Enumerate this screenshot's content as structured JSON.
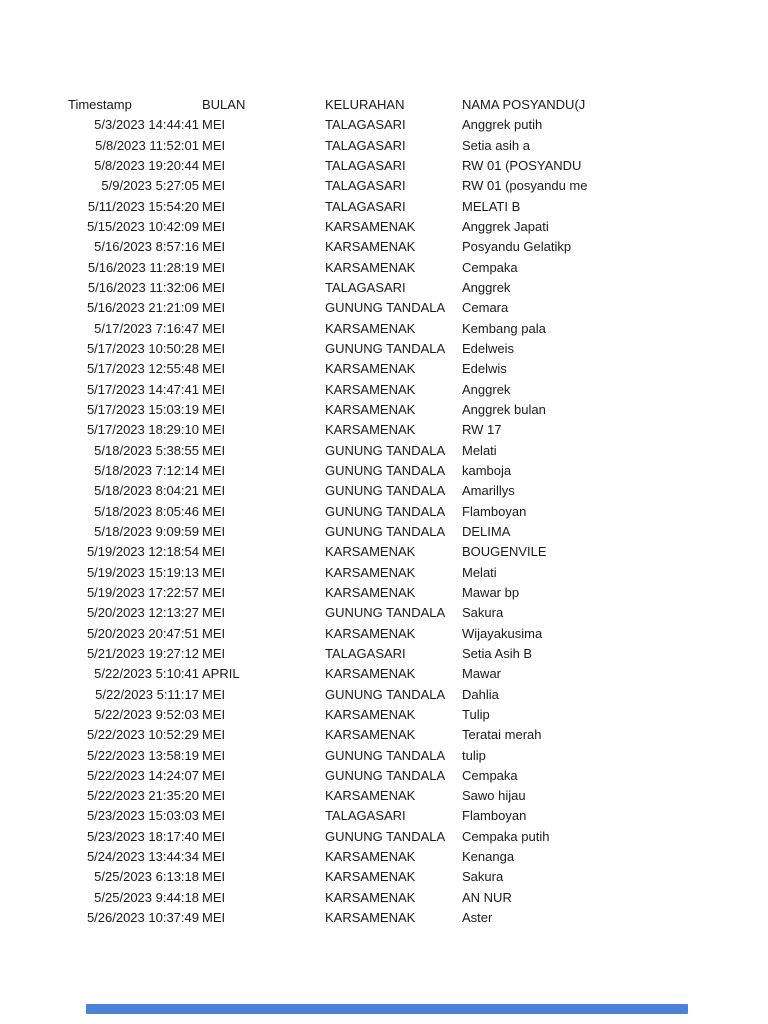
{
  "page": {
    "background_color": "#ffffff",
    "text_color": "#1b1b1b"
  },
  "table": {
    "columns": {
      "timestamp": "Timestamp",
      "bulan": "BULAN",
      "kelurahan": "KELURAHAN",
      "nama": "NAMA POSYANDU(J"
    },
    "rows": [
      {
        "timestamp": "5/3/2023 14:44:41",
        "bulan": "MEI",
        "kelurahan": "TALAGASARI",
        "nama": "Anggrek putih"
      },
      {
        "timestamp": "5/8/2023 11:52:01",
        "bulan": "MEI",
        "kelurahan": "TALAGASARI",
        "nama": "Setia asih a"
      },
      {
        "timestamp": "5/8/2023 19:20:44",
        "bulan": "MEI",
        "kelurahan": "TALAGASARI",
        "nama": "RW 01 (POSYANDU"
      },
      {
        "timestamp": "5/9/2023 5:27:05",
        "bulan": "MEI",
        "kelurahan": "TALAGASARI",
        "nama": "RW 01 (posyandu me"
      },
      {
        "timestamp": "5/11/2023 15:54:20",
        "bulan": "MEI",
        "kelurahan": "TALAGASARI",
        "nama": "MELATI B"
      },
      {
        "timestamp": "5/15/2023 10:42:09",
        "bulan": "MEI",
        "kelurahan": "KARSAMENAK",
        "nama": "Anggrek Japati"
      },
      {
        "timestamp": "5/16/2023 8:57:16",
        "bulan": "MEI",
        "kelurahan": "KARSAMENAK",
        "nama": "Posyandu Gelatikp"
      },
      {
        "timestamp": "5/16/2023 11:28:19",
        "bulan": "MEI",
        "kelurahan": "KARSAMENAK",
        "nama": "Cempaka"
      },
      {
        "timestamp": "5/16/2023 11:32:06",
        "bulan": "MEI",
        "kelurahan": "TALAGASARI",
        "nama": "Anggrek"
      },
      {
        "timestamp": "5/16/2023 21:21:09",
        "bulan": "MEI",
        "kelurahan": "GUNUNG TANDALA",
        "nama": "Cemara"
      },
      {
        "timestamp": "5/17/2023 7:16:47",
        "bulan": "MEI",
        "kelurahan": "KARSAMENAK",
        "nama": "Kembang pala"
      },
      {
        "timestamp": "5/17/2023 10:50:28",
        "bulan": "MEI",
        "kelurahan": "GUNUNG TANDALA",
        "nama": "Edelweis"
      },
      {
        "timestamp": "5/17/2023 12:55:48",
        "bulan": "MEI",
        "kelurahan": "KARSAMENAK",
        "nama": "Edelwis"
      },
      {
        "timestamp": "5/17/2023 14:47:41",
        "bulan": "MEI",
        "kelurahan": "KARSAMENAK",
        "nama": "Anggrek"
      },
      {
        "timestamp": "5/17/2023 15:03:19",
        "bulan": "MEI",
        "kelurahan": "KARSAMENAK",
        "nama": "Anggrek bulan"
      },
      {
        "timestamp": "5/17/2023 18:29:10",
        "bulan": "MEI",
        "kelurahan": "KARSAMENAK",
        "nama": "RW 17"
      },
      {
        "timestamp": "5/18/2023 5:38:55",
        "bulan": "MEI",
        "kelurahan": "GUNUNG TANDALA",
        "nama": "Melati"
      },
      {
        "timestamp": "5/18/2023 7:12:14",
        "bulan": "MEI",
        "kelurahan": "GUNUNG TANDALA",
        "nama": "kamboja"
      },
      {
        "timestamp": "5/18/2023 8:04:21",
        "bulan": "MEI",
        "kelurahan": "GUNUNG TANDALA",
        "nama": "Amarillys"
      },
      {
        "timestamp": "5/18/2023 8:05:46",
        "bulan": "MEI",
        "kelurahan": "GUNUNG TANDALA",
        "nama": "Flamboyan"
      },
      {
        "timestamp": "5/18/2023 9:09:59",
        "bulan": "MEI",
        "kelurahan": "GUNUNG TANDALA",
        "nama": "DELIMA"
      },
      {
        "timestamp": "5/19/2023 12:18:54",
        "bulan": "MEI",
        "kelurahan": "KARSAMENAK",
        "nama": "BOUGENVILE"
      },
      {
        "timestamp": "5/19/2023 15:19:13",
        "bulan": "MEI",
        "kelurahan": "KARSAMENAK",
        "nama": "Melati"
      },
      {
        "timestamp": "5/19/2023 17:22:57",
        "bulan": "MEI",
        "kelurahan": "KARSAMENAK",
        "nama": "Mawar bp"
      },
      {
        "timestamp": "5/20/2023 12:13:27",
        "bulan": "MEI",
        "kelurahan": "GUNUNG TANDALA",
        "nama": "Sakura"
      },
      {
        "timestamp": "5/20/2023 20:47:51",
        "bulan": "MEI",
        "kelurahan": "KARSAMENAK",
        "nama": "Wijayakusima"
      },
      {
        "timestamp": "5/21/2023 19:27:12",
        "bulan": "MEI",
        "kelurahan": "TALAGASARI",
        "nama": "Setia Asih B"
      },
      {
        "timestamp": "5/22/2023 5:10:41",
        "bulan": "APRIL",
        "kelurahan": "KARSAMENAK",
        "nama": "Mawar"
      },
      {
        "timestamp": "5/22/2023 5:11:17",
        "bulan": "MEI",
        "kelurahan": "GUNUNG TANDALA",
        "nama": "Dahlia"
      },
      {
        "timestamp": "5/22/2023 9:52:03",
        "bulan": "MEI",
        "kelurahan": "KARSAMENAK",
        "nama": "Tulip"
      },
      {
        "timestamp": "5/22/2023 10:52:29",
        "bulan": "MEI",
        "kelurahan": "KARSAMENAK",
        "nama": "Teratai merah"
      },
      {
        "timestamp": "5/22/2023 13:58:19",
        "bulan": "MEI",
        "kelurahan": "GUNUNG TANDALA",
        "nama": "tulip"
      },
      {
        "timestamp": "5/22/2023 14:24:07",
        "bulan": "MEI",
        "kelurahan": "GUNUNG TANDALA",
        "nama": "Cempaka"
      },
      {
        "timestamp": "5/22/2023 21:35:20",
        "bulan": "MEI",
        "kelurahan": "KARSAMENAK",
        "nama": "Sawo hijau"
      },
      {
        "timestamp": "5/23/2023 15:03:03",
        "bulan": "MEI",
        "kelurahan": "TALAGASARI",
        "nama": "Flamboyan"
      },
      {
        "timestamp": "5/23/2023 18:17:40",
        "bulan": "MEI",
        "kelurahan": "GUNUNG TANDALA",
        "nama": "Cempaka putih"
      },
      {
        "timestamp": "5/24/2023 13:44:34",
        "bulan": "MEI",
        "kelurahan": "KARSAMENAK",
        "nama": "Kenanga"
      },
      {
        "timestamp": "5/25/2023 6:13:18",
        "bulan": "MEI",
        "kelurahan": "KARSAMENAK",
        "nama": "Sakura"
      },
      {
        "timestamp": "5/25/2023 9:44:18",
        "bulan": "MEI",
        "kelurahan": "KARSAMENAK",
        "nama": "AN NUR"
      },
      {
        "timestamp": "5/26/2023 10:37:49",
        "bulan": "MEI",
        "kelurahan": "KARSAMENAK",
        "nama": "Aster"
      }
    ]
  },
  "scrollbar": {
    "color": "#4d83d6"
  }
}
